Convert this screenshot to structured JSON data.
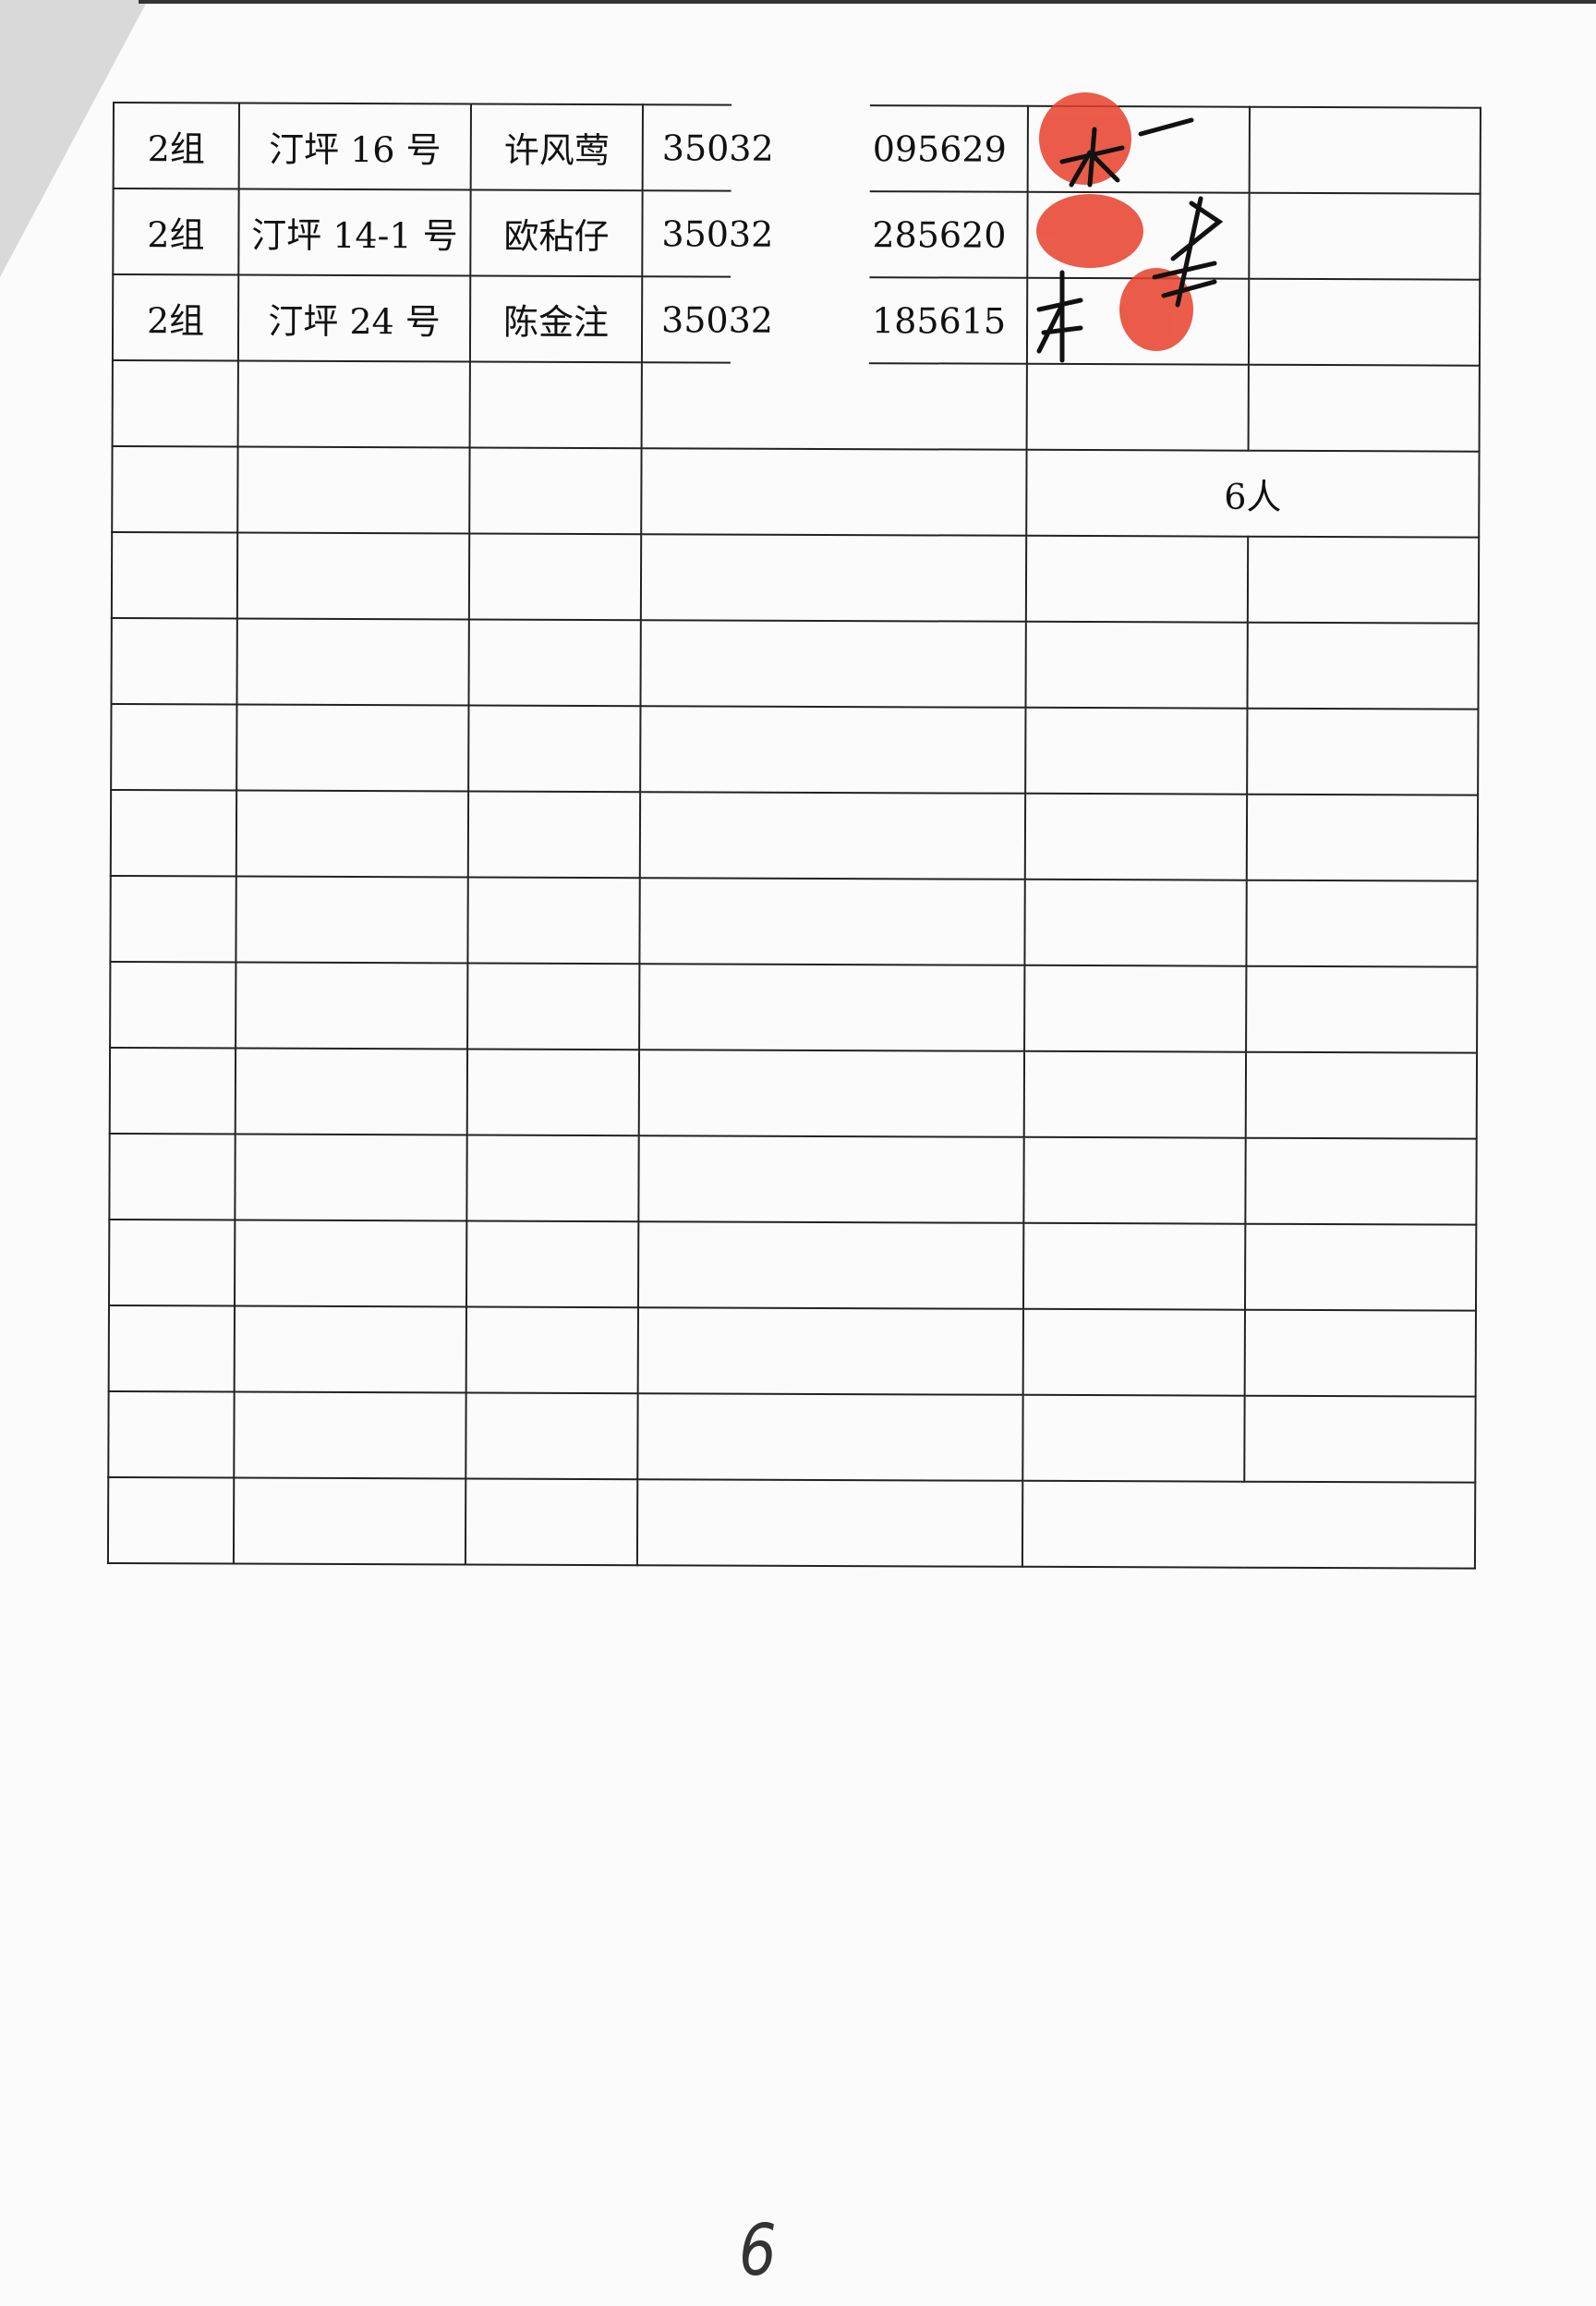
{
  "rows": [
    {
      "group": "2组",
      "address": "汀坪 16 号",
      "name": "许风莺",
      "id_prefix": "35032",
      "id_suffix": "095629",
      "signature": "一本",
      "fingerprint": true
    },
    {
      "group": "2组",
      "address": "汀坪 14-1 号",
      "name": "欧秥仔",
      "id_prefix": "35032",
      "id_suffix": "285620",
      "signature": "本",
      "fingerprint": true
    },
    {
      "group": "2组",
      "address": "汀坪 24 号",
      "name": "陈金注",
      "id_prefix": "35032",
      "id_suffix": "185615",
      "signature": "本",
      "fingerprint": true
    }
  ],
  "total": "6人",
  "empty_rows": 13,
  "page_number": "6",
  "colors": {
    "ink": "#111111",
    "fingerprint": "#e8402a",
    "paper": "#fbfbfb"
  }
}
